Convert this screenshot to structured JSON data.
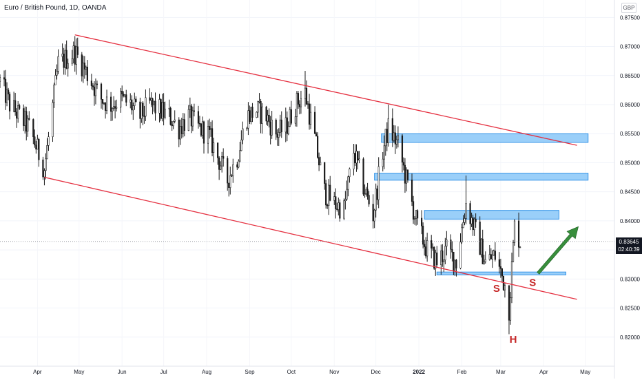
{
  "header": {
    "title": "Euro / British Pound, 1D, OANDA",
    "currency": "GBP"
  },
  "price_tag": {
    "price": "0.83645",
    "countdown": "02:40:39"
  },
  "annotations": {
    "left_shoulder": "S",
    "head": "H",
    "right_shoulder": "S"
  },
  "colors": {
    "up": "#26a69a",
    "down": "#ef5350",
    "candle": "#1a1a1a",
    "channel": "#e53040",
    "zone_fill": "#90caf9",
    "zone_stroke": "#1e88e5",
    "arrow": "#388e3c",
    "label": "#c62828"
  },
  "chart_data": {
    "type": "candlestick",
    "title": "Euro / British Pound, 1D, OANDA",
    "y_axis": {
      "unit": "GBP",
      "range": [
        0.815,
        0.878
      ],
      "ticks": [
        "0.87500",
        "0.87000",
        "0.86500",
        "0.86000",
        "0.85500",
        "0.85000",
        "0.84500",
        "0.84000",
        "0.83500",
        "0.83000",
        "0.82500",
        "0.82000"
      ]
    },
    "x_axis": {
      "range": [
        "2021-03-05",
        "2022-05-22"
      ],
      "ticks": [
        {
          "label": "Apr",
          "date": "2021-04-01"
        },
        {
          "label": "May",
          "date": "2021-05-01"
        },
        {
          "label": "Jun",
          "date": "2021-06-01"
        },
        {
          "label": "Jul",
          "date": "2021-07-01"
        },
        {
          "label": "Aug",
          "date": "2021-08-01"
        },
        {
          "label": "Sep",
          "date": "2021-09-01"
        },
        {
          "label": "Oct",
          "date": "2021-10-01"
        },
        {
          "label": "Nov",
          "date": "2021-11-01"
        },
        {
          "label": "Dec",
          "date": "2021-12-01"
        },
        {
          "label": "2022",
          "date": "2022-01-01"
        },
        {
          "label": "Feb",
          "date": "2022-02-01"
        },
        {
          "label": "Mar",
          "date": "2022-03-01"
        },
        {
          "label": "Apr",
          "date": "2022-04-01"
        },
        {
          "label": "May",
          "date": "2022-05-01"
        }
      ]
    },
    "last_price": 0.83645,
    "close_path": [
      [
        "2021-03-05",
        0.864
      ],
      [
        "2021-03-12",
        0.86
      ],
      [
        "2021-03-19",
        0.858
      ],
      [
        "2021-03-26",
        0.856
      ],
      [
        "2021-04-06",
        0.849
      ],
      [
        "2021-04-10",
        0.856
      ],
      [
        "2021-04-16",
        0.867
      ],
      [
        "2021-04-22",
        0.868
      ],
      [
        "2021-04-28",
        0.869
      ],
      [
        "2021-05-03",
        0.867
      ],
      [
        "2021-05-10",
        0.864
      ],
      [
        "2021-05-17",
        0.861
      ],
      [
        "2021-05-24",
        0.86
      ],
      [
        "2021-05-31",
        0.861
      ],
      [
        "2021-06-07",
        0.86
      ],
      [
        "2021-06-14",
        0.858
      ],
      [
        "2021-06-21",
        0.86
      ],
      [
        "2021-06-28",
        0.859
      ],
      [
        "2021-07-05",
        0.858
      ],
      [
        "2021-07-12",
        0.856
      ],
      [
        "2021-07-19",
        0.858
      ],
      [
        "2021-07-26",
        0.856
      ],
      [
        "2021-08-02",
        0.855
      ],
      [
        "2021-08-09",
        0.851
      ],
      [
        "2021-08-16",
        0.847
      ],
      [
        "2021-08-23",
        0.851
      ],
      [
        "2021-08-30",
        0.858
      ],
      [
        "2021-09-06",
        0.859
      ],
      [
        "2021-09-13",
        0.858
      ],
      [
        "2021-09-20",
        0.855
      ],
      [
        "2021-09-27",
        0.856
      ],
      [
        "2021-10-04",
        0.86
      ],
      [
        "2021-10-11",
        0.862
      ],
      [
        "2021-10-18",
        0.854
      ],
      [
        "2021-10-25",
        0.845
      ],
      [
        "2021-11-01",
        0.843
      ],
      [
        "2021-11-08",
        0.842
      ],
      [
        "2021-11-15",
        0.852
      ],
      [
        "2021-11-22",
        0.846
      ],
      [
        "2021-11-29",
        0.841
      ],
      [
        "2021-12-06",
        0.852
      ],
      [
        "2021-12-10",
        0.856
      ],
      [
        "2021-12-17",
        0.853
      ],
      [
        "2021-12-24",
        0.846
      ],
      [
        "2021-12-31",
        0.839
      ],
      [
        "2022-01-07",
        0.835
      ],
      [
        "2022-01-14",
        0.833
      ],
      [
        "2022-01-21",
        0.835
      ],
      [
        "2022-01-28",
        0.833
      ],
      [
        "2022-02-04",
        0.843
      ],
      [
        "2022-02-11",
        0.838
      ],
      [
        "2022-02-18",
        0.833
      ],
      [
        "2022-02-25",
        0.834
      ],
      [
        "2022-03-04",
        0.829
      ],
      [
        "2022-03-07",
        0.825
      ],
      [
        "2022-03-11",
        0.839
      ],
      [
        "2022-03-15",
        0.83645
      ]
    ],
    "extremes": [
      {
        "date": "2021-04-28",
        "high": 0.8718
      },
      {
        "date": "2021-10-11",
        "high": 0.8658
      },
      {
        "date": "2021-12-10",
        "high": 0.86
      },
      {
        "date": "2022-02-04",
        "high": 0.8478
      },
      {
        "date": "2022-03-07",
        "low": 0.8205
      }
    ],
    "channel_lines": [
      {
        "name": "upper",
        "from": [
          "2021-04-28",
          0.872
        ],
        "to": [
          "2022-04-25",
          0.853
        ]
      },
      {
        "name": "lower",
        "from": [
          "2021-04-06",
          0.8475
        ],
        "to": [
          "2022-04-25",
          0.8265
        ]
      }
    ],
    "horizontal_zones": [
      {
        "from": "2021-12-05",
        "to": "2022-05-03",
        "low": 0.8535,
        "high": 0.855
      },
      {
        "from": "2021-11-30",
        "to": "2022-05-03",
        "low": 0.847,
        "high": 0.8482
      },
      {
        "from": "2022-01-05",
        "to": "2022-04-12",
        "low": 0.8403,
        "high": 0.8418
      },
      {
        "from": "2022-01-14",
        "to": "2022-04-17",
        "low": 0.8307,
        "high": 0.8312
      }
    ],
    "projection_arrow": {
      "from": [
        "2022-03-28",
        0.831
      ],
      "to": [
        "2022-04-26",
        0.839
      ]
    },
    "labels": [
      {
        "text": "S",
        "date": "2022-02-26",
        "price": 0.8278
      },
      {
        "text": "H",
        "date": "2022-03-10",
        "price": 0.819
      },
      {
        "text": "S",
        "date": "2022-03-24",
        "price": 0.8288
      }
    ]
  }
}
